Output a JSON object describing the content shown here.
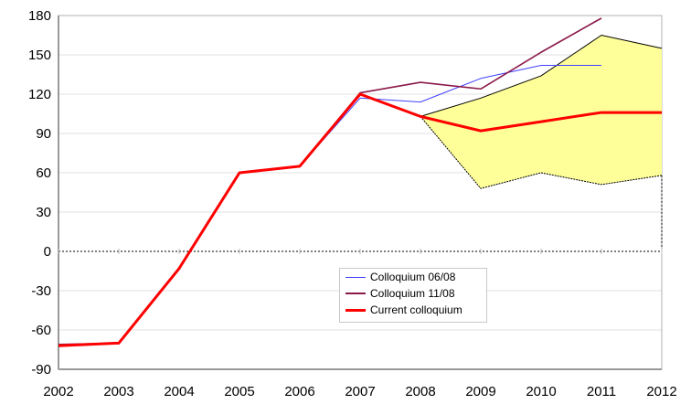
{
  "chart_data": {
    "type": "line",
    "x": [
      2002,
      2003,
      2004,
      2005,
      2006,
      2007,
      2008,
      2009,
      2010,
      2011,
      2012
    ],
    "xlim": [
      2002,
      2012
    ],
    "ylim": [
      -90,
      180
    ],
    "yticks": [
      -90,
      -60,
      -30,
      0,
      30,
      60,
      90,
      120,
      150,
      180
    ],
    "xticks": [
      2002,
      2003,
      2004,
      2005,
      2006,
      2007,
      2008,
      2009,
      2010,
      2011,
      2012
    ],
    "grid": "horizontal",
    "legend_position": "center-bottom",
    "series": [
      {
        "name": "Colloquium 06/08",
        "color": "#4040ff",
        "values": [
          -71,
          -70,
          -13,
          60,
          65,
          117,
          114,
          132,
          142,
          142,
          null
        ]
      },
      {
        "name": "Colloquium 11/08",
        "color": "#8b1a4a",
        "values": [
          -71,
          -70,
          -13,
          60,
          65,
          121,
          129,
          124,
          152,
          178,
          null
        ]
      },
      {
        "name": "Current colloquium",
        "color": "#ff0000",
        "values": [
          -72,
          -70,
          -13,
          60,
          65,
          120,
          103,
          92,
          99,
          106,
          106
        ]
      }
    ],
    "band": {
      "color": "#ffff99",
      "x": [
        2008,
        2009,
        2010,
        2011,
        2012
      ],
      "upper": [
        103,
        117,
        134,
        165,
        155
      ],
      "lower": [
        103,
        48,
        60,
        51,
        58
      ]
    }
  }
}
